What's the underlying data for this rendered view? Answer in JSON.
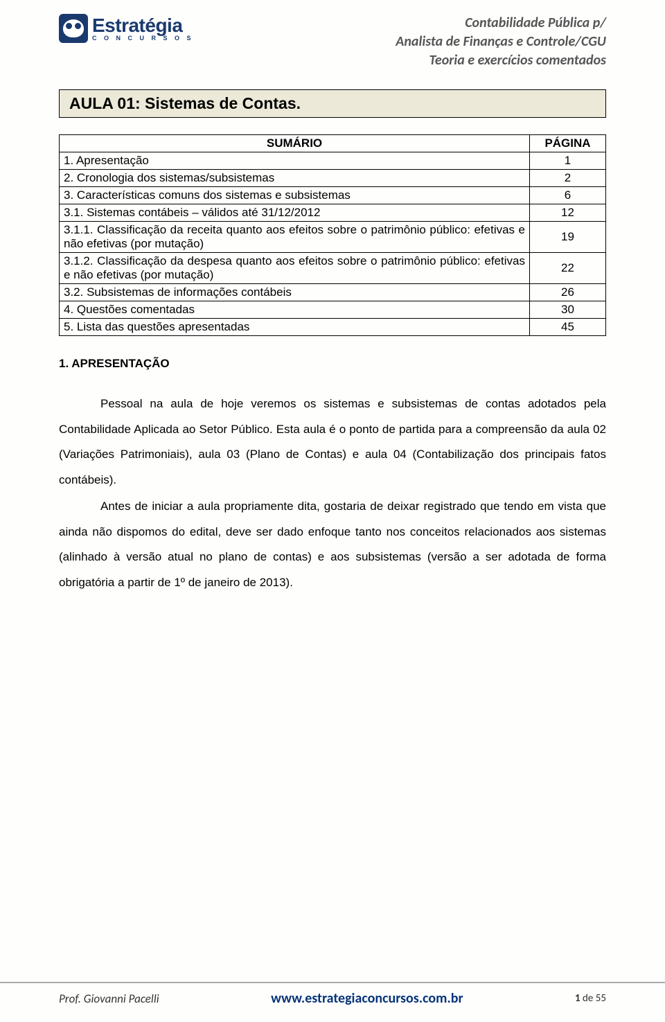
{
  "logo": {
    "main": "Estratégia",
    "sub": "C O N C U R S O S"
  },
  "header_right": {
    "line1": "Contabilidade Pública p/",
    "line2": "Analista de Finanças e Controle/CGU",
    "line3": "Teoria e exercícios comentados"
  },
  "aula_title": "AULA 01: Sistemas de Contas.",
  "table": {
    "header_item": "SUMÁRIO",
    "header_page": "PÁGINA",
    "rows": [
      {
        "item": "1. Apresentação",
        "page": "1"
      },
      {
        "item": "2. Cronologia dos sistemas/subsistemas",
        "page": "2"
      },
      {
        "item": "3. Características comuns dos sistemas e subsistemas",
        "page": "6"
      },
      {
        "item": "3.1. Sistemas contábeis – válidos até 31/12/2012",
        "page": "12"
      },
      {
        "item": "3.1.1. Classificação da receita quanto aos efeitos sobre o patrimônio público: efetivas e não efetivas (por mutação)",
        "page": "19"
      },
      {
        "item": "3.1.2. Classificação da despesa quanto aos efeitos sobre o patrimônio público: efetivas e não efetivas (por mutação)",
        "page": "22"
      },
      {
        "item": "3.2. Subsistemas de informações contábeis",
        "page": "26"
      },
      {
        "item": "4. Questões comentadas",
        "page": "30"
      },
      {
        "item": "5. Lista das questões apresentadas",
        "page": "45"
      }
    ]
  },
  "section_title": "1. APRESENTAÇÃO",
  "paragraphs": {
    "p1": "Pessoal na aula de hoje veremos os sistemas e subsistemas de contas adotados pela Contabilidade Aplicada ao Setor Público. Esta aula é o ponto de partida para a compreensão da aula 02 (Variações Patrimoniais), aula 03 (Plano de Contas) e aula 04 (Contabilização dos principais fatos contábeis).",
    "p2": "Antes de iniciar a aula propriamente dita, gostaria de deixar registrado que tendo em vista que ainda não dispomos do edital, deve ser dado enfoque tanto nos conceitos relacionados aos sistemas (alinhado à versão atual no plano de contas) e aos subsistemas (versão a ser adotada de forma obrigatória a partir de 1º de janeiro de 2013)."
  },
  "footer": {
    "left": "Prof. Giovanni Pacelli",
    "center": "www.estrategiaconcursos.com.br",
    "right_page": "1",
    "right_total": " de 55"
  },
  "colors": {
    "brand": "#1a3a6e",
    "title_box_bg": "#ece9d8",
    "footer_link": "#06347a",
    "text": "#000000",
    "header_gray": "#555555"
  }
}
